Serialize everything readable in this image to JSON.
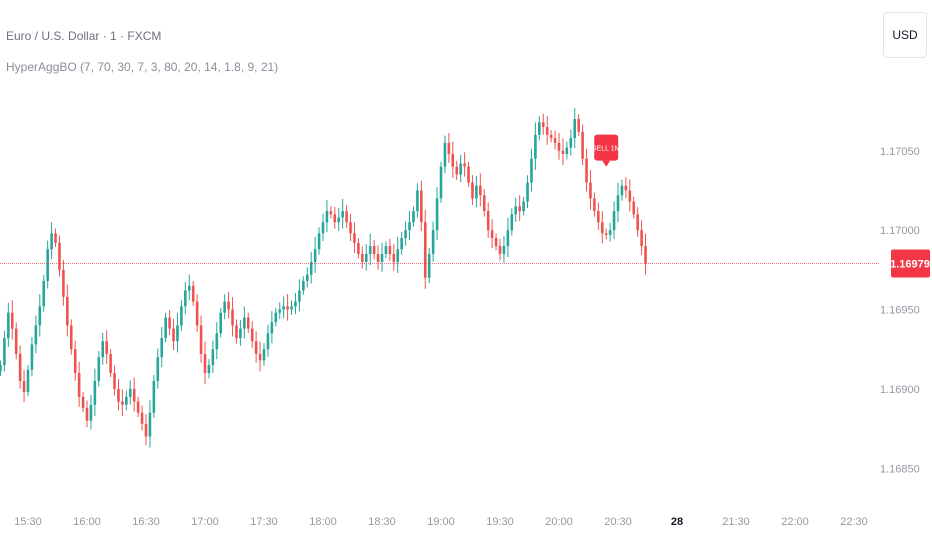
{
  "header": {
    "symbol_title": "Euro / U.S. Dollar · 1 · FXCM",
    "indicator_label": "HyperAggBO (7, 70, 30, 7, 3, 80, 20, 14, 1.8, 9, 21)",
    "currency_button": "USD"
  },
  "colors": {
    "up": "#26a69a",
    "down": "#ef5350",
    "price_line": "#f23645",
    "axis_text": "#9598a1",
    "sell_marker": "#f23645"
  },
  "chart_data": {
    "type": "candlestick",
    "title": "Euro / U.S. Dollar · 1 · FXCM",
    "ylim": [
      1.1683,
      1.17145
    ],
    "y_ticks": [
      1.1685,
      1.169,
      1.1695,
      1.17,
      1.1705
    ],
    "y_tick_labels": [
      "1.16850",
      "1.16900",
      "1.16950",
      "1.17000",
      "1.17050"
    ],
    "x_ticks": [
      {
        "label": "15:30",
        "minutes": 0
      },
      {
        "label": "16:00",
        "minutes": 30
      },
      {
        "label": "16:30",
        "minutes": 60
      },
      {
        "label": "17:00",
        "minutes": 90
      },
      {
        "label": "17:30",
        "minutes": 120
      },
      {
        "label": "18:00",
        "minutes": 150
      },
      {
        "label": "18:30",
        "minutes": 180
      },
      {
        "label": "19:00",
        "minutes": 210
      },
      {
        "label": "19:30",
        "minutes": 240
      },
      {
        "label": "20:00",
        "minutes": 270
      },
      {
        "label": "20:30",
        "minutes": 300
      },
      {
        "label": "28",
        "minutes": 330,
        "bold": true
      },
      {
        "label": "21:30",
        "minutes": 360
      },
      {
        "label": "22:00",
        "minutes": 390
      },
      {
        "label": "22:30",
        "minutes": 420
      }
    ],
    "series_close": [
      1.16915,
      1.16932,
      1.16948,
      1.16938,
      1.16922,
      1.16905,
      1.16898,
      1.16912,
      1.16928,
      1.1694,
      1.16952,
      1.16968,
      1.16988,
      1.16998,
      1.16992,
      1.16975,
      1.16958,
      1.1694,
      1.16925,
      1.1691,
      1.16895,
      1.16888,
      1.1688,
      1.1689,
      1.16905,
      1.1692,
      1.1693,
      1.16922,
      1.1691,
      1.169,
      1.16892,
      1.1689,
      1.16895,
      1.169,
      1.16892,
      1.16885,
      1.16878,
      1.1687,
      1.16885,
      1.16905,
      1.1692,
      1.16932,
      1.16945,
      1.16938,
      1.1693,
      1.1694,
      1.16952,
      1.16962,
      1.16965,
      1.16955,
      1.1694,
      1.16922,
      1.1691,
      1.16915,
      1.16925,
      1.16935,
      1.16948,
      1.16955,
      1.1695,
      1.1694,
      1.16932,
      1.16938,
      1.16945,
      1.16938,
      1.1693,
      1.16922,
      1.16918,
      1.16925,
      1.16935,
      1.16942,
      1.16948,
      1.1695,
      1.16952,
      1.1695,
      1.16952,
      1.16955,
      1.16962,
      1.16968,
      1.16972,
      1.1698,
      1.16988,
      1.16998,
      1.17005,
      1.17012,
      1.1701,
      1.17005,
      1.17008,
      1.17012,
      1.17005,
      1.16998,
      1.16992,
      1.16985,
      1.1698,
      1.16985,
      1.1699,
      1.16985,
      1.1698,
      1.16985,
      1.1699,
      1.16985,
      1.1698,
      1.16988,
      1.16995,
      1.17,
      1.17005,
      1.17012,
      1.17025,
      1.17005,
      1.1697,
      1.16985,
      1.17,
      1.1702,
      1.1704,
      1.17055,
      1.17048,
      1.1704,
      1.17035,
      1.17042,
      1.1704,
      1.1703,
      1.1702,
      1.17028,
      1.17022,
      1.17012,
      1.17,
      1.16995,
      1.1699,
      1.16985,
      1.1699,
      1.17,
      1.1701,
      1.17015,
      1.17012,
      1.17018,
      1.1703,
      1.17045,
      1.1706,
      1.17068,
      1.17065,
      1.1706,
      1.17058,
      1.17055,
      1.1705,
      1.17048,
      1.17052,
      1.17058,
      1.1707,
      1.17062,
      1.17045,
      1.1703,
      1.1702,
      1.17012,
      1.17005,
      1.16998,
      1.16997,
      1.17,
      1.17012,
      1.17022,
      1.17028,
      1.17025,
      1.17018,
      1.1701,
      1.17,
      1.1699,
      1.16979
    ],
    "current_price": 1.16979,
    "current_price_label": "1.16979",
    "annotations": [
      {
        "text": "SELL 1M",
        "bar_index": 154,
        "price": 1.17035
      }
    ],
    "grid": false,
    "legend_placement": "top-left"
  }
}
